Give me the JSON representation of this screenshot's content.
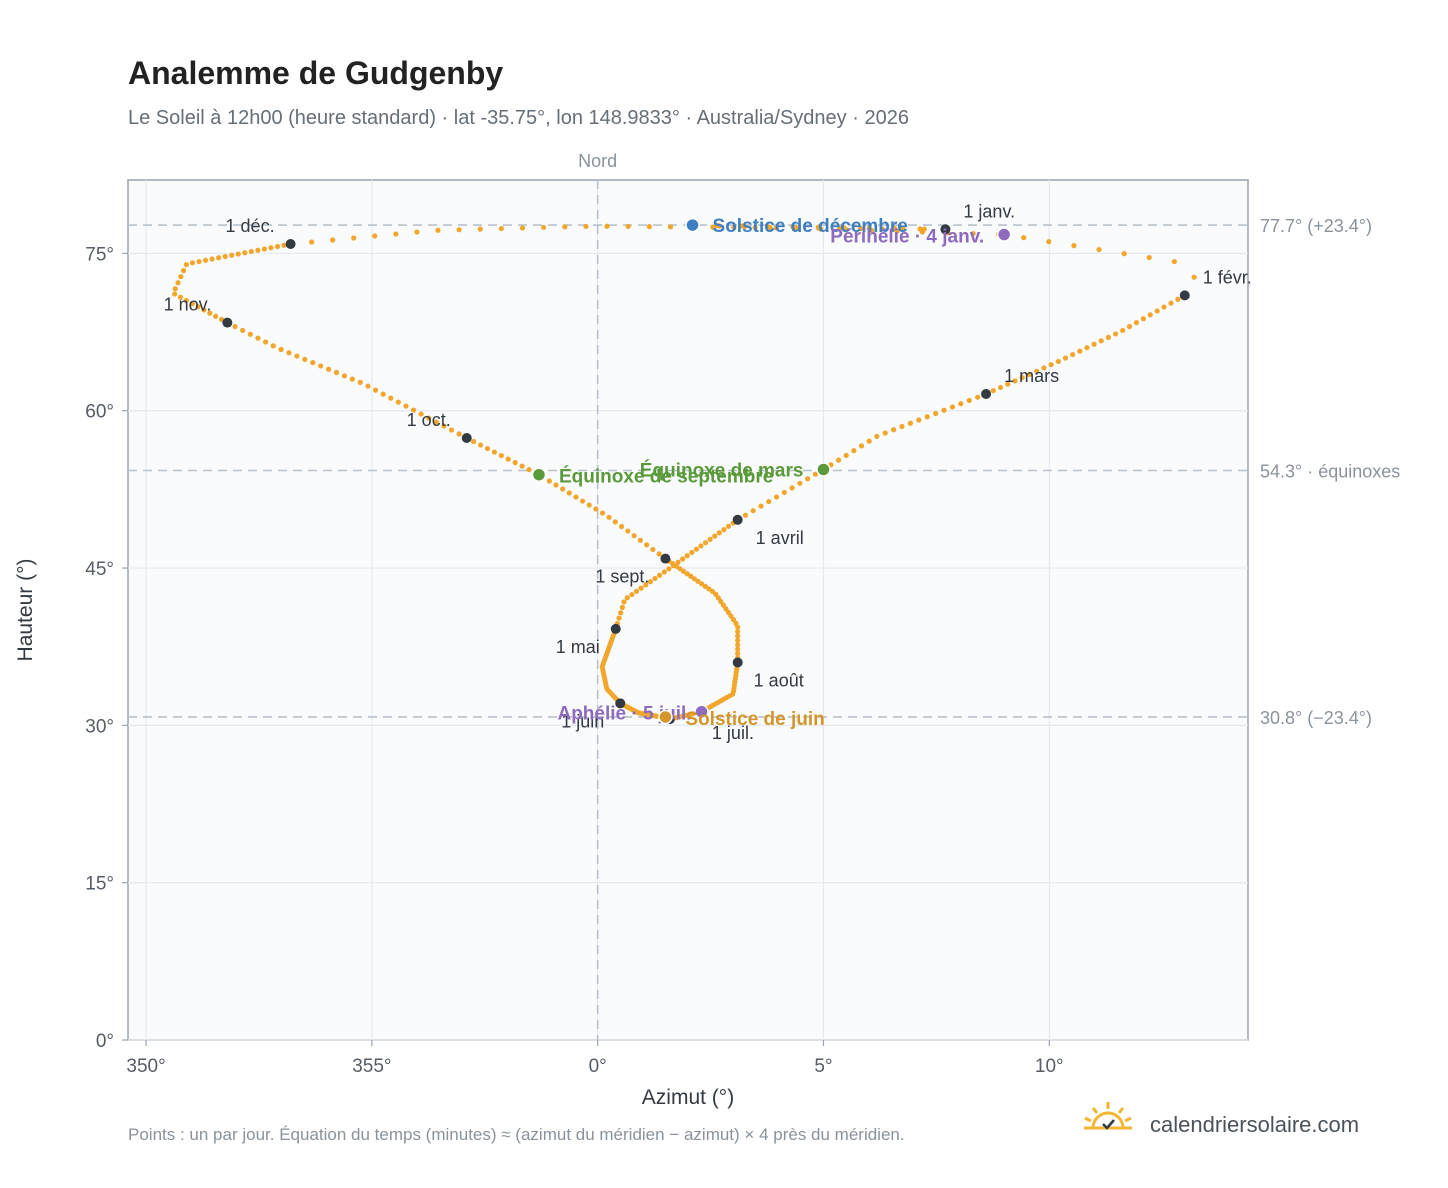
{
  "header": {
    "title": "Analemme de Gudgenby",
    "subtitle": "Le Soleil à 12h00 (heure standard) · lat -35.75°, lon 148.9833° · Australia/Sydney · 2026"
  },
  "footer": {
    "note": "Points : un par jour. Équation du temps (minutes) ≈ (azimut du méridien − azimut) × 4 près du méridien.",
    "brand": "calendriersolaire.com",
    "brand_icon": "sun-check-icon"
  },
  "chart_data": {
    "type": "scatter",
    "xlabel": "Azimut (°)",
    "ylabel": "Hauteur (°)",
    "xlim": [
      349.6,
      14.4
    ],
    "ylim": [
      0,
      82
    ],
    "x_ticks": [
      {
        "value": 350,
        "label": "350°"
      },
      {
        "value": 355,
        "label": "355°"
      },
      {
        "value": 360,
        "label": "0°"
      },
      {
        "value": 365,
        "label": "5°"
      },
      {
        "value": 370,
        "label": "10°"
      }
    ],
    "y_ticks": [
      {
        "value": 0,
        "label": "0°"
      },
      {
        "value": 15,
        "label": "15°"
      },
      {
        "value": 30,
        "label": "30°"
      },
      {
        "value": 45,
        "label": "45°"
      },
      {
        "value": 60,
        "label": "60°"
      },
      {
        "value": 75,
        "label": "75°"
      }
    ],
    "grid": true,
    "meridian": {
      "azimuth": 0,
      "label": "Nord"
    },
    "reference_lines": [
      {
        "altitude": 77.7,
        "label": "77.7° (+23.4°)"
      },
      {
        "altitude": 54.3,
        "label": "54.3° · équinoxes"
      },
      {
        "altitude": 30.8,
        "label": "30.8° (−23.4°)"
      }
    ],
    "curve_color": "#f2a62b",
    "month_color": "#333a42",
    "month_markers": [
      {
        "label": "1 janv.",
        "azimuth": 7.7,
        "altitude": 77.3
      },
      {
        "label": "1 févr.",
        "azimuth": 13.0,
        "altitude": 71.0
      },
      {
        "label": "1 mars",
        "azimuth": 8.6,
        "altitude": 61.6
      },
      {
        "label": "1 avril",
        "azimuth": 3.1,
        "altitude": 49.6
      },
      {
        "label": "1 mai",
        "azimuth": 0.4,
        "altitude": 39.2
      },
      {
        "label": "1 juin",
        "azimuth": 0.5,
        "altitude": 32.1
      },
      {
        "label": "1 juil.",
        "azimuth": 1.6,
        "altitude": 30.6
      },
      {
        "label": "1 août",
        "azimuth": 3.1,
        "altitude": 36.0
      },
      {
        "label": "1 sept.",
        "azimuth": 1.5,
        "altitude": 45.9
      },
      {
        "label": "1 oct.",
        "azimuth": -2.9,
        "altitude": 57.4
      },
      {
        "label": "1 nov.",
        "azimuth": -8.2,
        "altitude": 68.4
      },
      {
        "label": "1 déc.",
        "azimuth": -6.8,
        "altitude": 75.9
      }
    ],
    "events": [
      {
        "label": "Solstice de décembre",
        "azimuth": 2.1,
        "altitude": 77.7,
        "color": "#3f7fc1"
      },
      {
        "label": "Périhélie · 4 janv.",
        "azimuth": 9.0,
        "altitude": 76.8,
        "color": "#8e6bbf"
      },
      {
        "label": "Équinoxe de mars",
        "azimuth": 5.0,
        "altitude": 54.4,
        "color": "#5a9a3a"
      },
      {
        "label": "Équinoxe de septembre",
        "azimuth": -1.3,
        "altitude": 53.9,
        "color": "#5a9a3a"
      },
      {
        "label": "Aphélie · 5 juil.",
        "azimuth": 2.3,
        "altitude": 31.3,
        "color": "#8e6bbf"
      },
      {
        "label": "Solstice de juin",
        "azimuth": 1.5,
        "altitude": 30.8,
        "color": "#d4952a"
      }
    ]
  }
}
